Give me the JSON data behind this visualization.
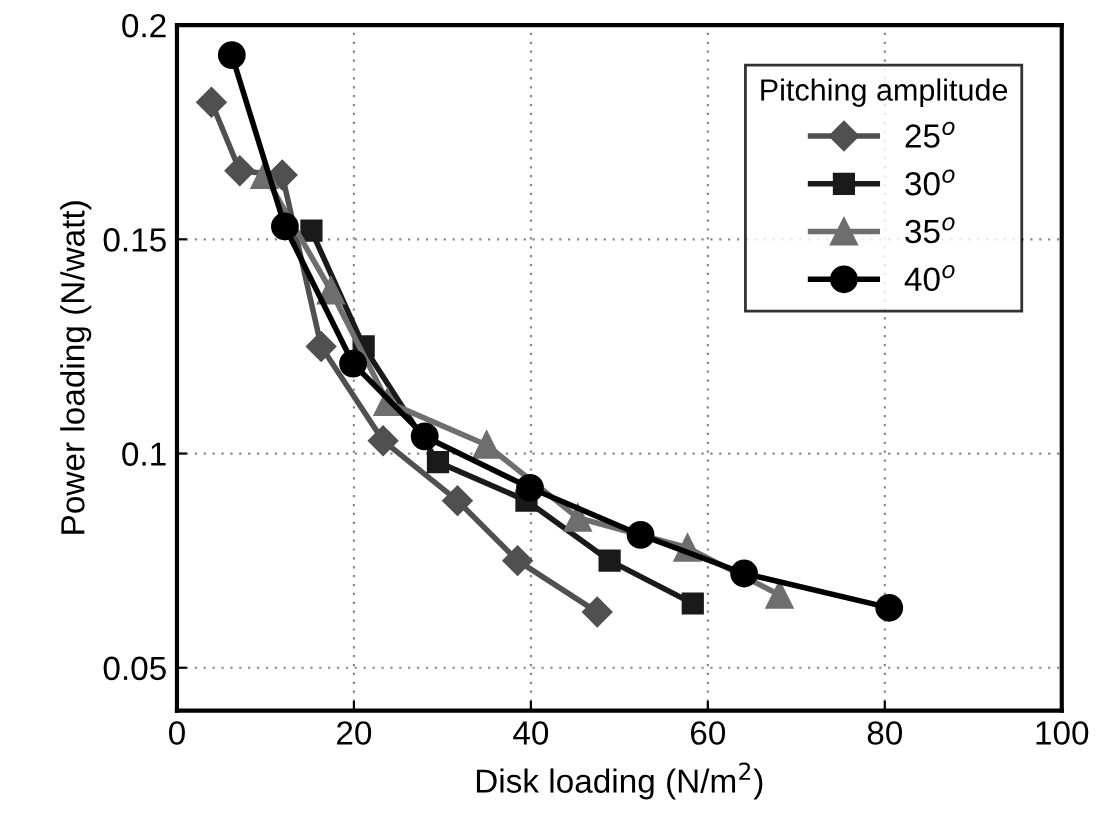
{
  "chart_data": {
    "type": "line",
    "xlabel": "Disk loading (N/m$^{2}$)",
    "ylabel": "Power loading (N/watt)",
    "legend_title": "Pitching amplitude",
    "xlim": [
      0,
      100
    ],
    "ylim": [
      0.04,
      0.2
    ],
    "xticks": [
      0,
      20,
      40,
      60,
      80,
      100
    ],
    "yticks": [
      0.05,
      0.1,
      0.15,
      0.2
    ],
    "grid": true,
    "legend": "top right",
    "line_style": "solid",
    "series": [
      {
        "name": "25$^{o}$",
        "color": "#505050",
        "marker": "diamond",
        "x": [
          3.9,
          7.1,
          11.9,
          16.3,
          23.3,
          31.7,
          38.5,
          47.5
        ],
        "values": [
          0.182,
          0.166,
          0.165,
          0.125,
          0.103,
          0.089,
          0.075,
          0.063
        ]
      },
      {
        "name": "30$^{o}$",
        "color": "#1a1a1a",
        "marker": "square",
        "x": [
          15.2,
          21.1,
          29.5,
          39.5,
          48.9,
          58.3
        ],
        "values": [
          0.152,
          0.125,
          0.098,
          0.089,
          0.075,
          0.065
        ]
      },
      {
        "name": "35$^{o}$",
        "color": "#6e6e6e",
        "marker": "triangle",
        "x": [
          9.9,
          17.4,
          23.8,
          35.0,
          45.3,
          57.7,
          68.1
        ],
        "values": [
          0.165,
          0.138,
          0.112,
          0.102,
          0.085,
          0.078,
          0.067
        ]
      },
      {
        "name": "40$^{o}$",
        "color": "#000000",
        "marker": "circle",
        "x": [
          6.2,
          12.2,
          19.9,
          28.0,
          39.9,
          52.4,
          64.1,
          80.5
        ],
        "values": [
          0.193,
          0.153,
          0.121,
          0.104,
          0.092,
          0.081,
          0.072,
          0.064
        ]
      }
    ]
  }
}
